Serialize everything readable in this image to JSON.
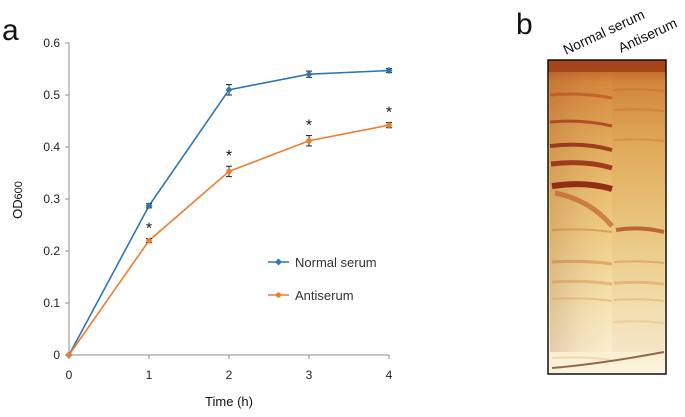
{
  "panels": {
    "a": "a",
    "b": "b"
  },
  "chart_data": {
    "type": "line",
    "title": "",
    "xlabel": "Time (h)",
    "ylabel_main": "OD",
    "ylabel_sub": "600",
    "x": [
      0,
      1,
      2,
      3,
      4
    ],
    "xticks": [
      "0",
      "1",
      "2",
      "3",
      "4"
    ],
    "yticks": [
      "0",
      "0.1",
      "0.2",
      "0.3",
      "0.4",
      "0.5",
      "0.6"
    ],
    "xlim": [
      0,
      4
    ],
    "ylim": [
      0,
      0.6
    ],
    "grid": false,
    "legend_position": "center-right",
    "series": [
      {
        "name": "Normal serum",
        "color": "#2e75b6",
        "marker": "diamond",
        "values": [
          0,
          0.287,
          0.51,
          0.54,
          0.547
        ],
        "errors": [
          0,
          0.004,
          0.01,
          0.006,
          0.004
        ]
      },
      {
        "name": "Antiserum",
        "color": "#ed7d31",
        "marker": "circle",
        "values": [
          0,
          0.22,
          0.353,
          0.412,
          0.442
        ],
        "errors": [
          0,
          0.004,
          0.01,
          0.01,
          0.005
        ]
      }
    ],
    "annotations": [
      {
        "text": "*",
        "x": 1,
        "series": "Antiserum"
      },
      {
        "text": "*",
        "x": 2,
        "series": "Antiserum"
      },
      {
        "text": "*",
        "x": 3,
        "series": "Antiserum"
      },
      {
        "text": "*",
        "x": 4,
        "series": "Antiserum"
      }
    ]
  },
  "gel": {
    "lanes": [
      "Normal serum",
      "Antiserum"
    ]
  }
}
